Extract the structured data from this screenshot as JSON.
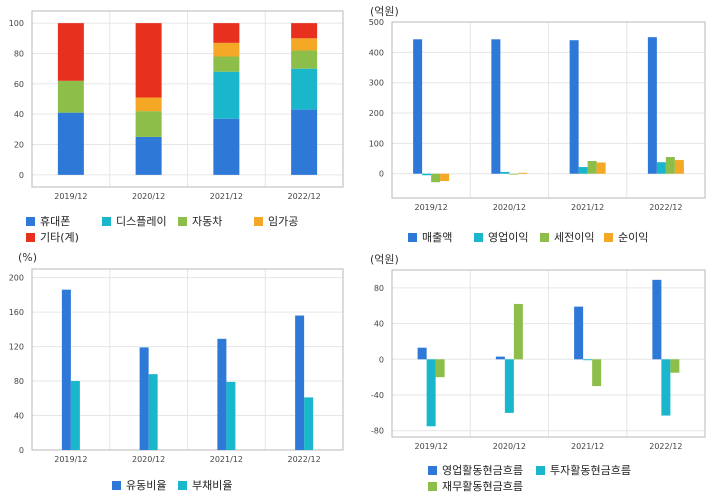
{
  "colors": {
    "blue": "#2e78d8",
    "cyan": "#19b6cc",
    "green": "#8dbe4a",
    "orange": "#f4a825",
    "red": "#e8301e"
  },
  "chart_data": [
    {
      "type": "bar",
      "stacked": true,
      "unit": "",
      "categories": [
        "2019/12",
        "2020/12",
        "2021/12",
        "2022/12"
      ],
      "ylim": [
        -8,
        108
      ],
      "yticks": [
        0,
        20,
        40,
        60,
        80,
        100
      ],
      "series": [
        {
          "name": "휴대폰",
          "color": "blue",
          "values": [
            41,
            25,
            37,
            43
          ]
        },
        {
          "name": "디스플레이",
          "color": "cyan",
          "values": [
            0,
            0,
            31,
            27
          ]
        },
        {
          "name": "자동차",
          "color": "green",
          "values": [
            21,
            17,
            10,
            12
          ]
        },
        {
          "name": "임가공",
          "color": "orange",
          "values": [
            0,
            9,
            9,
            8
          ]
        },
        {
          "name": "기타(계)",
          "color": "red",
          "values": [
            38,
            49,
            13,
            10
          ]
        }
      ],
      "grid": true,
      "legend": "bottom"
    },
    {
      "type": "bar",
      "unit": "(억원)",
      "categories": [
        "2019/12",
        "2020/12",
        "2021/12",
        "2022/12"
      ],
      "ylim": [
        -80,
        500
      ],
      "yticks": [
        0,
        100,
        200,
        300,
        400,
        500
      ],
      "series": [
        {
          "name": "매출액",
          "color": "blue",
          "values": [
            443,
            443,
            440,
            450
          ]
        },
        {
          "name": "영업이익",
          "color": "cyan",
          "values": [
            -5,
            6,
            22,
            38
          ]
        },
        {
          "name": "세전이익",
          "color": "green",
          "values": [
            -28,
            -2,
            42,
            55
          ]
        },
        {
          "name": "순이익",
          "color": "orange",
          "values": [
            -24,
            3,
            37,
            45
          ]
        }
      ],
      "grid": true,
      "legend": "bottom"
    },
    {
      "type": "bar",
      "unit": "(%)",
      "categories": [
        "2019/12",
        "2020/12",
        "2021/12",
        "2022/12"
      ],
      "ylim": [
        0,
        210
      ],
      "yticks": [
        0,
        40,
        80,
        120,
        160,
        200
      ],
      "series": [
        {
          "name": "유동비율",
          "color": "blue",
          "values": [
            186,
            119,
            129,
            156
          ]
        },
        {
          "name": "부채비율",
          "color": "cyan",
          "values": [
            80,
            88,
            79,
            61
          ]
        }
      ],
      "grid": true,
      "legend": "bottom"
    },
    {
      "type": "bar",
      "unit": "(억원)",
      "categories": [
        "2019/12",
        "2020/12",
        "2021/12",
        "2022/12"
      ],
      "ylim": [
        -87,
        100
      ],
      "yticks": [
        -80,
        -40,
        0,
        40,
        80
      ],
      "series": [
        {
          "name": "영업활동현금흐름",
          "color": "blue",
          "values": [
            13,
            3,
            59,
            89
          ]
        },
        {
          "name": "투자활동현금흐름",
          "color": "cyan",
          "values": [
            -75,
            -60,
            -1,
            -63
          ]
        },
        {
          "name": "재무활동현금흐름",
          "color": "green",
          "values": [
            -20,
            62,
            -30,
            -15
          ]
        }
      ],
      "grid": true,
      "legend": "bottom"
    }
  ]
}
